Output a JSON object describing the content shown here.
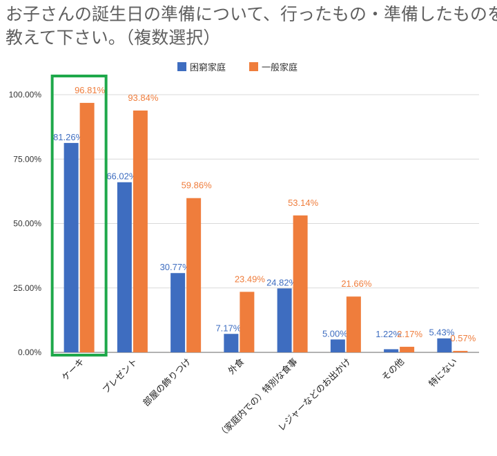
{
  "title_lines": [
    "お子さんの誕生日の準備について、行ったもの・準備したものを",
    "教えて下さい。（複数選択）"
  ],
  "chart_data": {
    "type": "bar",
    "title": "お子さんの誕生日の準備について、行ったもの・準備したものを教えて下さい。（複数選択）",
    "categories": [
      "ケーキ",
      "プレゼント",
      "部屋の飾りつけ",
      "外食",
      "（家庭内での）特別な食事",
      "レジャーなどのお出かけ",
      "その他",
      "特にない"
    ],
    "series": [
      {
        "name": "困窮家庭",
        "color": "#3e6dc0",
        "values": [
          81.26,
          66.02,
          30.77,
          7.17,
          24.82,
          5.0,
          1.22,
          5.43
        ],
        "labels": [
          "81.26%",
          "66.02%",
          "30.77%",
          "7.17%",
          "24.82%",
          "5.00%",
          "1.22%",
          "5.43%"
        ]
      },
      {
        "name": "一般家庭",
        "color": "#ef7d3c",
        "values": [
          96.81,
          93.84,
          59.86,
          23.49,
          53.14,
          21.66,
          2.17,
          0.57
        ],
        "labels": [
          "96.81%",
          "93.84%",
          "59.86%",
          "23.49%",
          "53.14%",
          "21.66%",
          "2.17%",
          "0.57%"
        ]
      }
    ],
    "y_ticks": [
      0,
      25,
      50,
      75,
      100
    ],
    "y_tick_labels": [
      "0.00%",
      "25.00%",
      "50.00%",
      "75.00%",
      "100.00%"
    ],
    "ylim": [
      0,
      100
    ],
    "grid": true,
    "legend_position": "top-center",
    "highlight": {
      "category": "ケーキ",
      "color": "#1ea84a"
    }
  }
}
